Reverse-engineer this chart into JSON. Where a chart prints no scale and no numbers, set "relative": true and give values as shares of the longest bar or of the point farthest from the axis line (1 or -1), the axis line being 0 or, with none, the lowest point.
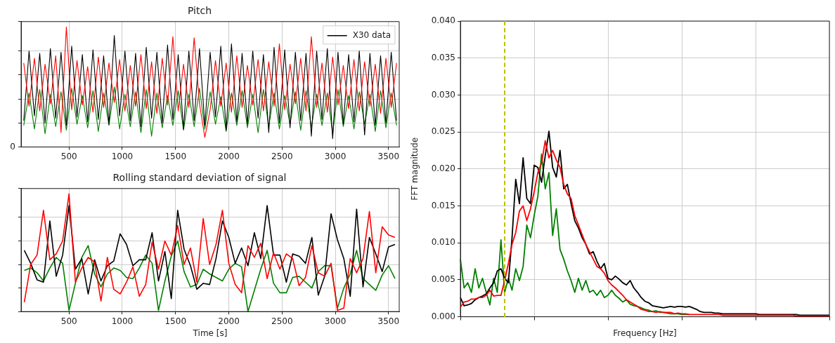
{
  "chart_data": [
    {
      "type": "line",
      "title": "Pitch",
      "relative": true,
      "tick_labels": "x",
      "grid": true,
      "legend": "top right",
      "annotations": [
        "0"
      ],
      "xlim": [
        50,
        3600
      ],
      "xticks": [
        500,
        1000,
        1500,
        2000,
        2500,
        3000,
        3500
      ],
      "x": [
        75,
        125,
        175,
        225,
        275,
        325,
        375,
        425,
        475,
        525,
        575,
        625,
        675,
        725,
        775,
        825,
        875,
        925,
        975,
        1025,
        1075,
        1125,
        1175,
        1225,
        1275,
        1325,
        1375,
        1425,
        1475,
        1525,
        1575,
        1625,
        1675,
        1725,
        1775,
        1825,
        1875,
        1925,
        1975,
        2025,
        2075,
        2125,
        2175,
        2225,
        2275,
        2325,
        2375,
        2425,
        2475,
        2525,
        2575,
        2625,
        2675,
        2725,
        2775,
        2825,
        2875,
        2925,
        2975,
        3025,
        3075,
        3125,
        3175,
        3225,
        3275,
        3325,
        3375,
        3425,
        3475,
        3525,
        3575
      ],
      "series": [
        {
          "color": "#008000",
          "values": [
            0.18,
            0.45,
            0.15,
            0.48,
            0.11,
            0.44,
            0.17,
            0.46,
            0.14,
            0.49,
            0.19,
            0.43,
            0.16,
            0.47,
            0.13,
            0.45,
            0.18,
            0.5,
            0.15,
            0.44,
            0.17,
            0.46,
            0.12,
            0.48,
            0.09,
            0.45,
            0.16,
            0.43,
            0.18,
            0.47,
            0.14,
            0.44,
            0.17,
            0.49,
            0.15,
            0.46,
            0.19,
            0.42,
            0.13,
            0.45,
            0.18,
            0.47,
            0.16,
            0.44,
            0.12,
            0.48,
            0.17,
            0.45,
            0.15,
            0.43,
            0.19,
            0.46,
            0.14,
            0.47,
            0.16,
            0.44,
            0.18,
            0.45,
            0.11,
            0.48,
            0.17,
            0.43,
            0.15,
            0.46,
            0.19,
            0.44,
            0.13,
            0.47,
            0.16,
            0.45,
            0.18
          ]
        },
        {
          "name": "X30 data",
          "color": "#000000",
          "values": [
            0.22,
            0.8,
            0.26,
            0.78,
            0.2,
            0.82,
            0.24,
            0.79,
            0.18,
            0.84,
            0.25,
            0.77,
            0.21,
            0.81,
            0.23,
            0.76,
            0.19,
            0.93,
            0.26,
            0.8,
            0.22,
            0.78,
            0.17,
            0.83,
            0.24,
            0.79,
            0.2,
            0.85,
            0.23,
            0.77,
            0.15,
            0.8,
            0.22,
            0.82,
            0.18,
            0.79,
            0.25,
            0.84,
            0.14,
            0.86,
            0.21,
            0.78,
            0.19,
            0.8,
            0.24,
            0.77,
            0.12,
            0.83,
            0.2,
            0.81,
            0.16,
            0.79,
            0.22,
            0.78,
            0.09,
            0.8,
            0.23,
            0.82,
            0.07,
            0.79,
            0.19,
            0.77,
            0.21,
            0.8,
            0.1,
            0.78,
            0.18,
            0.76,
            0.2,
            0.79,
            0.22
          ]
        },
        {
          "color": "#ff0000",
          "values": [
            0.7,
            0.34,
            0.74,
            0.3,
            0.69,
            0.36,
            0.76,
            0.12,
            1.0,
            0.31,
            0.72,
            0.35,
            0.67,
            0.29,
            0.75,
            0.33,
            0.7,
            0.37,
            0.73,
            0.3,
            0.68,
            0.34,
            0.77,
            0.32,
            0.71,
            0.28,
            0.74,
            0.35,
            0.92,
            0.3,
            0.69,
            0.33,
            0.91,
            0.36,
            0.08,
            0.31,
            0.72,
            0.34,
            0.7,
            0.29,
            0.76,
            0.33,
            0.68,
            0.35,
            0.73,
            0.3,
            0.71,
            0.34,
            0.86,
            0.31,
            0.69,
            0.36,
            0.74,
            0.3,
            0.92,
            0.33,
            0.7,
            0.29,
            0.75,
            0.35,
            0.68,
            0.32,
            0.73,
            0.3,
            0.71,
            0.34,
            0.69,
            0.28,
            0.74,
            0.33,
            0.7
          ]
        }
      ]
    },
    {
      "type": "line",
      "title": "Rolling standard deviation of signal",
      "xlabel": "Time [s]",
      "relative": true,
      "tick_labels": "x",
      "grid": true,
      "xlim": [
        50,
        3600
      ],
      "xticks": [
        500,
        1000,
        1500,
        2000,
        2500,
        3000,
        3500
      ],
      "x": [
        80,
        140,
        200,
        260,
        320,
        380,
        440,
        500,
        560,
        620,
        680,
        740,
        800,
        860,
        920,
        980,
        1040,
        1100,
        1160,
        1220,
        1280,
        1340,
        1400,
        1460,
        1520,
        1580,
        1640,
        1700,
        1760,
        1820,
        1880,
        1940,
        2000,
        2060,
        2120,
        2180,
        2240,
        2300,
        2360,
        2420,
        2480,
        2540,
        2600,
        2660,
        2720,
        2780,
        2840,
        2900,
        2960,
        3020,
        3080,
        3140,
        3200,
        3260,
        3320,
        3380,
        3440,
        3500,
        3560
      ],
      "series": [
        {
          "color": "#008000",
          "values": [
            0.35,
            0.37,
            0.33,
            0.26,
            0.37,
            0.46,
            0.41,
            0.01,
            0.24,
            0.46,
            0.56,
            0.32,
            0.21,
            0.32,
            0.37,
            0.35,
            0.29,
            0.28,
            0.37,
            0.48,
            0.41,
            0.01,
            0.26,
            0.47,
            0.6,
            0.34,
            0.21,
            0.23,
            0.36,
            0.32,
            0.29,
            0.26,
            0.36,
            0.41,
            0.38,
            0,
            0.18,
            0.36,
            0.52,
            0.24,
            0.16,
            0.16,
            0.29,
            0.3,
            0.25,
            0.2,
            0.34,
            0.39,
            0.39,
            0.03,
            0.2,
            0.32,
            0.52,
            0.28,
            0.23,
            0.18,
            0.31,
            0.39,
            0.28
          ]
        },
        {
          "color": "#000000",
          "values": [
            0.52,
            0.41,
            0.27,
            0.25,
            0.77,
            0.3,
            0.48,
            0.9,
            0.36,
            0.45,
            0.15,
            0.44,
            0.26,
            0.39,
            0.43,
            0.66,
            0.57,
            0.39,
            0.44,
            0.44,
            0.67,
            0.26,
            0.51,
            0.11,
            0.86,
            0.53,
            0.39,
            0.19,
            0.24,
            0.23,
            0.45,
            0.77,
            0.63,
            0.41,
            0.54,
            0.39,
            0.67,
            0.45,
            0.9,
            0.48,
            0.48,
            0.25,
            0.49,
            0.47,
            0.41,
            0.63,
            0.14,
            0.3,
            0.83,
            0.61,
            0.45,
            0.13,
            0.87,
            0.21,
            0.63,
            0.49,
            0.34,
            0.55,
            0.57
          ]
        },
        {
          "color": "#ff0000",
          "values": [
            0.08,
            0.4,
            0.48,
            0.86,
            0.44,
            0.49,
            0.6,
            1.0,
            0.25,
            0.37,
            0.46,
            0.42,
            0.09,
            0.46,
            0.19,
            0.15,
            0.25,
            0.38,
            0.13,
            0.23,
            0.59,
            0.36,
            0.6,
            0.48,
            0.73,
            0.4,
            0.54,
            0.25,
            0.79,
            0.4,
            0.57,
            0.86,
            0.41,
            0.23,
            0.16,
            0.56,
            0.46,
            0.58,
            0.28,
            0.5,
            0.36,
            0.49,
            0.45,
            0.22,
            0.29,
            0.56,
            0.33,
            0.3,
            0.41,
            0.01,
            0.03,
            0.45,
            0.33,
            0.45,
            0.85,
            0.33,
            0.72,
            0.65,
            0.63
          ]
        }
      ]
    },
    {
      "type": "line",
      "xlabel": "Frequency [Hz]",
      "ylabel": "FFT magnitude",
      "tick_labels": "y",
      "grid": true,
      "ylim": [
        0,
        0.04
      ],
      "yticks": [
        {
          "value": 0,
          "label": "0.000"
        },
        {
          "value": 0.005,
          "label": "0.005"
        },
        {
          "value": 0.01,
          "label": "0.010"
        },
        {
          "value": 0.015,
          "label": "0.015"
        },
        {
          "value": 0.02,
          "label": "0.020"
        },
        {
          "value": 0.025,
          "label": "0.025"
        },
        {
          "value": 0.03,
          "label": "0.030"
        },
        {
          "value": 0.035,
          "label": "0.035"
        },
        {
          "value": 0.04,
          "label": "0.040"
        }
      ],
      "categories": [
        null,
        null,
        null,
        null,
        null,
        null,
        null,
        null,
        null,
        null,
        null,
        null,
        null,
        null,
        null,
        null,
        null,
        null,
        null,
        null,
        null,
        null,
        null,
        null,
        null,
        null,
        null,
        null,
        null,
        null,
        null,
        null,
        null,
        null,
        null,
        null,
        null,
        null,
        null,
        null,
        null,
        null,
        null,
        null,
        null,
        null,
        null,
        null,
        null,
        null,
        null,
        null,
        null,
        null,
        null,
        null,
        null,
        null,
        null,
        null,
        null,
        null,
        null,
        null,
        null,
        null,
        null,
        null,
        null,
        null,
        null,
        null,
        null,
        null,
        null,
        null,
        null,
        null,
        null,
        null,
        null,
        null,
        null,
        null,
        null,
        null,
        null,
        null,
        null,
        null,
        null,
        null,
        null,
        null,
        null,
        null,
        null,
        null,
        null,
        null,
        null
      ],
      "series": [
        {
          "color": "#008000",
          "values": [
            0.0078,
            0.0039,
            0.0046,
            0.0033,
            0.0065,
            0.0039,
            0.0052,
            0.0033,
            0.0016,
            0.0052,
            0.0033,
            0.0104,
            0.0033,
            0.0052,
            0.0036,
            0.0065,
            0.0049,
            0.0068,
            0.0124,
            0.0107,
            0.0137,
            0.0163,
            0.022,
            0.0173,
            0.0195,
            0.011,
            0.0146,
            0.0091,
            0.0078,
            0.0062,
            0.0049,
            0.0033,
            0.0052,
            0.0036,
            0.0049,
            0.0033,
            0.0036,
            0.0029,
            0.0036,
            0.0026,
            0.0029,
            0.0036,
            0.0029,
            0.0025,
            0.002,
            0.0023,
            0.0017,
            0.0015,
            0.0014,
            0.0012,
            0.001,
            0.0009,
            0.0007,
            0.0008,
            0.0006,
            0.0006,
            0.0005,
            0.0004,
            0.0004,
            0.0004,
            0.0003,
            0.0003,
            0.0003,
            null,
            null,
            null,
            null,
            null,
            null,
            null,
            null,
            null,
            null,
            null,
            null,
            null,
            null,
            null,
            null,
            null,
            null,
            null,
            null,
            null,
            null,
            null,
            null,
            null,
            null,
            null,
            null,
            null,
            null,
            null,
            null,
            null,
            null,
            null,
            null,
            null,
            null
          ]
        },
        {
          "color": "#000000",
          "values": [
            0.0026,
            0.0015,
            0.0016,
            0.0018,
            0.0023,
            0.0026,
            0.0028,
            0.0031,
            0.0039,
            0.0046,
            0.0062,
            0.0065,
            0.0052,
            0.0046,
            0.0107,
            0.0186,
            0.0153,
            0.0215,
            0.016,
            0.0153,
            0.0205,
            0.0202,
            0.0182,
            0.0218,
            0.0251,
            0.0202,
            0.0189,
            0.0225,
            0.0173,
            0.0179,
            0.0153,
            0.013,
            0.012,
            0.0107,
            0.0098,
            0.0085,
            0.0088,
            0.0075,
            0.0065,
            0.0072,
            0.0052,
            0.005,
            0.0055,
            0.0051,
            0.0046,
            0.0043,
            0.0049,
            0.0039,
            0.0033,
            0.0026,
            0.0021,
            0.0019,
            0.0015,
            0.0014,
            0.0013,
            0.0012,
            0.0013,
            0.0014,
            0.0013,
            0.0014,
            0.0014,
            0.0013,
            0.0014,
            0.0012,
            0.001,
            0.0007,
            0.0006,
            0.0006,
            0.0006,
            0.0005,
            0.0005,
            0.0004,
            0.0004,
            0.0004,
            0.0004,
            0.0004,
            0.0004,
            0.0004,
            0.0004,
            0.0004,
            0.0004,
            0.0003,
            0.0003,
            0.0003,
            0.0003,
            0.0003,
            0.0003,
            0.0003,
            0.0003,
            0.0003,
            0.0003,
            0.0003,
            0.0002,
            0.0002,
            0.0002,
            0.0002,
            0.0002,
            0.0002,
            0.0002,
            0.0002,
            0.0002
          ]
        },
        {
          "color": "#ff0000",
          "values": [
            0.0013,
            0.002,
            0.0021,
            0.0024,
            0.0024,
            0.0026,
            0.0026,
            0.0029,
            0.0036,
            0.0028,
            0.0029,
            0.0029,
            0.0049,
            0.0072,
            0.0098,
            0.0114,
            0.0143,
            0.015,
            0.013,
            0.0146,
            0.0169,
            0.0195,
            0.0208,
            0.0238,
            0.0215,
            0.0225,
            0.0212,
            0.0202,
            0.0179,
            0.0166,
            0.016,
            0.0137,
            0.0124,
            0.0111,
            0.0098,
            0.0088,
            0.0078,
            0.0068,
            0.0065,
            0.0059,
            0.0049,
            0.0043,
            0.0039,
            0.0034,
            0.0029,
            0.0023,
            0.002,
            0.0017,
            0.0014,
            0.001,
            0.0009,
            0.0007,
            0.0007,
            0.0006,
            0.0007,
            0.0006,
            0.0006,
            0.0006,
            0.0004,
            0.0005,
            0.0004,
            0.0004,
            0.0003,
            0.0003,
            0.0003,
            0.0003,
            0.0003,
            0.0003,
            0.0003,
            0.0003,
            0.0003,
            0.0002,
            0.0002,
            0.0002,
            0.0002,
            0.0002,
            0.0002,
            0.0002,
            0.0002,
            0.0002,
            0.0002,
            0.0002,
            0.0002,
            0.0002,
            0.0002,
            0.0002,
            0.0002,
            0.0002,
            0.0002,
            0.0002,
            0.0002,
            0.0001,
            0.0001,
            0.0001,
            0.0001,
            0.0001,
            0.0001,
            0.0001,
            0.0001,
            0.0001,
            0.0001
          ]
        }
      ]
    }
  ]
}
